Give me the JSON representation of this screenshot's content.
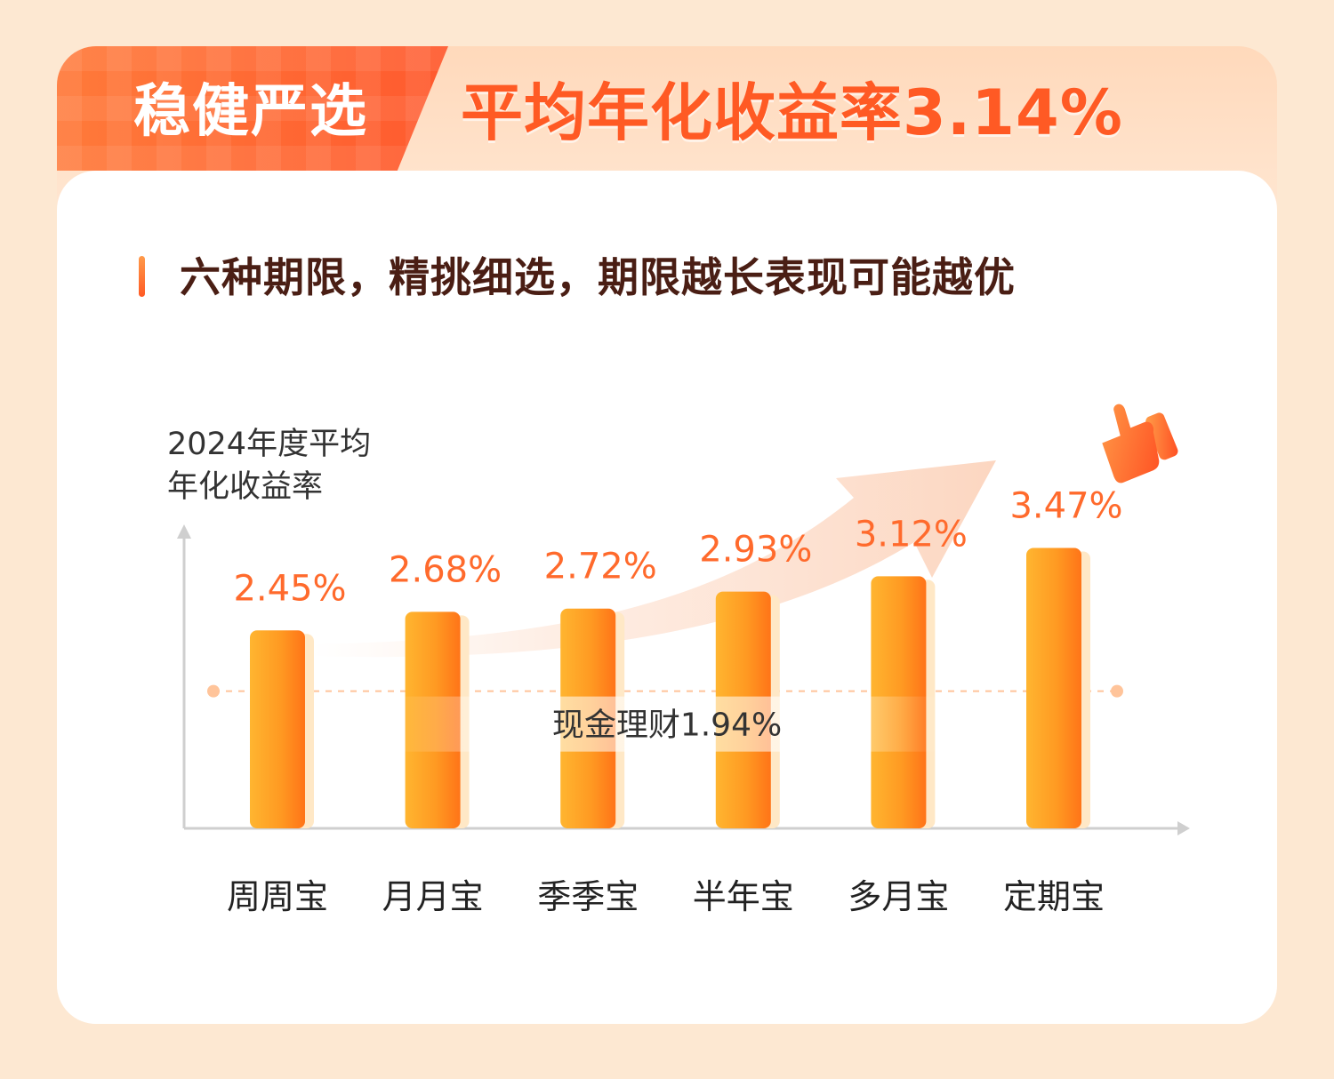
{
  "header": {
    "badge_label": "稳健严选",
    "headline": "平均年化收益率3.14%"
  },
  "subtitle": "六种期限，精挑细选，期限越长表现可能越优",
  "colors": {
    "accent": "#ff5a24",
    "bar_light": "#ffb22e",
    "bar_dark": "#ff7a1f",
    "value_label": "#ff6a2c",
    "reference_line": "#ffc49a"
  },
  "icons": [
    "thumbs-up-icon",
    "trend-arrow-icon"
  ],
  "chart_data": {
    "type": "bar",
    "ylabel_lines": [
      "2024年度平均",
      "年化收益率"
    ],
    "categories": [
      "周周宝",
      "月月宝",
      "季季宝",
      "半年宝",
      "多月宝",
      "定期宝"
    ],
    "values": [
      2.45,
      2.68,
      2.72,
      2.93,
      3.12,
      3.47
    ],
    "value_labels": [
      "2.45%",
      "2.68%",
      "2.72%",
      "2.93%",
      "3.12%",
      "3.47%"
    ],
    "ylim": [
      0,
      4
    ],
    "reference_line": {
      "label": "现金理财1.94%",
      "value": 1.94
    },
    "grid": false
  }
}
